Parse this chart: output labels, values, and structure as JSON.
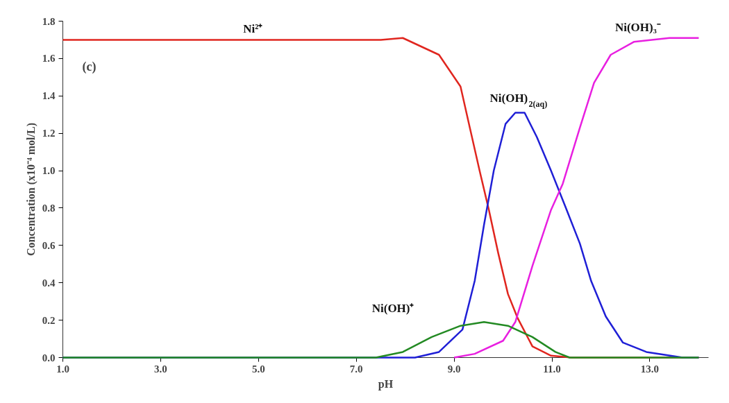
{
  "chart_data": {
    "type": "line",
    "xlabel": "pH",
    "ylabel": "Concentration (x10⁻⁴ mol/L)",
    "xlim": [
      1,
      14.2
    ],
    "ylim": [
      0,
      1.8
    ],
    "xticks": [
      {
        "value": 1,
        "label": "1.0"
      },
      {
        "value": 3,
        "label": "3.0"
      },
      {
        "value": 5,
        "label": "5.0"
      },
      {
        "value": 7,
        "label": "7.0"
      },
      {
        "value": 9,
        "label": "9.0"
      },
      {
        "value": 11,
        "label": "11.0"
      },
      {
        "value": 13,
        "label": "13.0"
      }
    ],
    "yticks": [
      {
        "value": 0,
        "label": "0.0"
      },
      {
        "value": 0.2,
        "label": "0.2"
      },
      {
        "value": 0.4,
        "label": "0.4"
      },
      {
        "value": 0.6,
        "label": "0.6"
      },
      {
        "value": 0.8,
        "label": "0.8"
      },
      {
        "value": 1.0,
        "label": "1.0"
      },
      {
        "value": 1.2,
        "label": "1.2"
      },
      {
        "value": 1.4,
        "label": "1.4"
      },
      {
        "value": 1.6,
        "label": "1.6"
      },
      {
        "value": 1.8,
        "label": "1.8"
      }
    ],
    "grid": false,
    "legend": false,
    "marker": "none",
    "line_style": "solid",
    "annotations": [
      "(c)"
    ],
    "series": [
      {
        "name": "Ni²⁺",
        "color": "#e0261f",
        "x": [
          1,
          4,
          7.5,
          7.95,
          8.69,
          9.13,
          9.32,
          9.52,
          9.71,
          9.9,
          10.1,
          10.3,
          10.6,
          10.98,
          11.4,
          14
        ],
        "values": [
          1.7,
          1.7,
          1.7,
          1.71,
          1.62,
          1.45,
          1.23,
          1.0,
          0.79,
          0.56,
          0.34,
          0.21,
          0.06,
          0.01,
          0,
          0
        ]
      },
      {
        "name": "Ni(OH)$_{2(aq)}$",
        "color": "#1f1fd6",
        "x": [
          1,
          8.2,
          8.69,
          9.17,
          9.42,
          9.61,
          9.81,
          10.05,
          10.25,
          10.44,
          10.69,
          10.98,
          11.27,
          11.57,
          11.8,
          12.1,
          12.45,
          12.93,
          13.67,
          14
        ],
        "values": [
          0,
          0,
          0.03,
          0.15,
          0.41,
          0.71,
          1.0,
          1.25,
          1.31,
          1.31,
          1.18,
          1.0,
          0.81,
          0.61,
          0.41,
          0.22,
          0.08,
          0.03,
          0,
          0
        ]
      },
      {
        "name": "Ni(OH)₃⁻",
        "color": "#e81fe0",
        "x": [
          9.0,
          9.42,
          10.0,
          10.25,
          10.6,
          10.98,
          11.22,
          11.57,
          11.86,
          12.2,
          12.68,
          13.4,
          14
        ],
        "values": [
          0,
          0.02,
          0.09,
          0.19,
          0.49,
          0.79,
          0.93,
          1.23,
          1.47,
          1.62,
          1.69,
          1.71,
          1.71
        ]
      },
      {
        "name": "Ni(OH)⁺",
        "color": "#238a23",
        "x": [
          1,
          7.4,
          7.95,
          8.54,
          9.13,
          9.61,
          10.1,
          10.6,
          11.07,
          11.36,
          14
        ],
        "values": [
          0,
          0,
          0.03,
          0.11,
          0.17,
          0.19,
          0.17,
          0.11,
          0.03,
          0,
          0
        ]
      }
    ]
  }
}
